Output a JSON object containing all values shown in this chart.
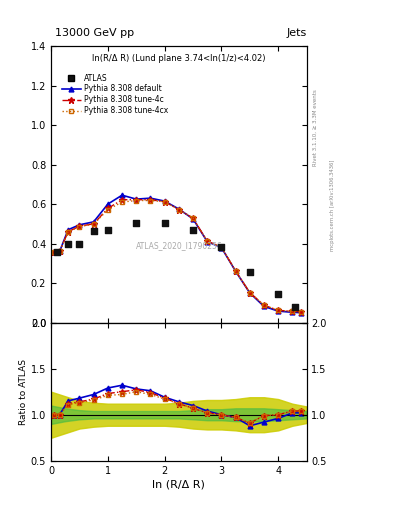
{
  "title_top": "13000 GeV pp",
  "title_right": "Jets",
  "annotation": "ln(R/Δ R) (Lund plane 3.74<ln(1/z)<4.02)",
  "watermark": "ATLAS_2020_I1790256",
  "right_label_top": "Rivet 3.1.10, ≥ 3.3M events",
  "right_label_bot": "mcplots.cern.ch [arXiv:1306.3436]",
  "xlabel": "ln (R/Δ R)",
  "xlim": [
    0,
    4.5
  ],
  "ylim_main": [
    0.0,
    1.4
  ],
  "ylim_ratio": [
    0.5,
    2.0
  ],
  "yticks_main": [
    0.0,
    0.2,
    0.4,
    0.6,
    0.8,
    1.0,
    1.2,
    1.4
  ],
  "yticks_ratio": [
    0.5,
    1.0,
    1.5,
    2.0
  ],
  "xticks": [
    0,
    1,
    2,
    3,
    4
  ],
  "atlas_x": [
    0.1,
    0.3,
    0.5,
    0.75,
    1.0,
    1.5,
    2.0,
    2.5,
    3.0,
    3.5,
    4.0,
    4.3
  ],
  "atlas_y": [
    0.355,
    0.4,
    0.4,
    0.465,
    0.47,
    0.505,
    0.505,
    0.47,
    0.385,
    0.255,
    0.145,
    0.08
  ],
  "pythia_x": [
    0.05,
    0.15,
    0.3,
    0.5,
    0.75,
    1.0,
    1.25,
    1.5,
    1.75,
    2.0,
    2.25,
    2.5,
    2.75,
    3.0,
    3.25,
    3.5,
    3.75,
    4.0,
    4.25,
    4.4
  ],
  "default_y": [
    0.355,
    0.36,
    0.47,
    0.495,
    0.51,
    0.6,
    0.645,
    0.625,
    0.63,
    0.615,
    0.575,
    0.525,
    0.41,
    0.38,
    0.26,
    0.15,
    0.082,
    0.058,
    0.052,
    0.05
  ],
  "tune4c_y": [
    0.355,
    0.36,
    0.46,
    0.488,
    0.5,
    0.578,
    0.622,
    0.622,
    0.622,
    0.612,
    0.572,
    0.528,
    0.413,
    0.382,
    0.262,
    0.152,
    0.088,
    0.062,
    0.057,
    0.055
  ],
  "tune4cx_y": [
    0.355,
    0.36,
    0.458,
    0.486,
    0.498,
    0.572,
    0.61,
    0.618,
    0.618,
    0.612,
    0.572,
    0.53,
    0.413,
    0.382,
    0.262,
    0.152,
    0.088,
    0.062,
    0.057,
    0.055
  ],
  "ratio_default_y": [
    1.0,
    1.0,
    1.15,
    1.18,
    1.22,
    1.29,
    1.32,
    1.28,
    1.26,
    1.19,
    1.14,
    1.1,
    1.04,
    1.0,
    0.97,
    0.88,
    0.92,
    0.96,
    1.02,
    1.02
  ],
  "ratio_4c_y": [
    1.0,
    1.0,
    1.12,
    1.14,
    1.17,
    1.23,
    1.25,
    1.27,
    1.24,
    1.18,
    1.12,
    1.07,
    1.02,
    1.0,
    0.97,
    0.91,
    0.99,
    1.0,
    1.04,
    1.04
  ],
  "ratio_4cx_y": [
    1.0,
    1.0,
    1.11,
    1.13,
    1.16,
    1.21,
    1.22,
    1.25,
    1.22,
    1.17,
    1.12,
    1.07,
    1.02,
    1.0,
    0.97,
    0.91,
    0.99,
    1.0,
    1.04,
    1.04
  ],
  "band_x": [
    0.0,
    0.25,
    0.5,
    0.75,
    1.0,
    1.25,
    1.5,
    1.75,
    2.0,
    2.25,
    2.5,
    2.75,
    3.0,
    3.25,
    3.5,
    3.75,
    4.0,
    4.25,
    4.5
  ],
  "green_low": [
    0.9,
    0.93,
    0.95,
    0.96,
    0.96,
    0.96,
    0.96,
    0.96,
    0.96,
    0.96,
    0.95,
    0.94,
    0.94,
    0.93,
    0.93,
    0.93,
    0.94,
    0.95,
    0.96
  ],
  "green_high": [
    1.1,
    1.07,
    1.05,
    1.04,
    1.04,
    1.04,
    1.04,
    1.04,
    1.04,
    1.04,
    1.05,
    1.06,
    1.06,
    1.07,
    1.07,
    1.07,
    1.06,
    1.05,
    1.04
  ],
  "yellow_low": [
    0.75,
    0.8,
    0.85,
    0.87,
    0.88,
    0.88,
    0.88,
    0.88,
    0.88,
    0.87,
    0.85,
    0.84,
    0.84,
    0.83,
    0.81,
    0.81,
    0.83,
    0.88,
    0.91
  ],
  "yellow_high": [
    1.25,
    1.2,
    1.15,
    1.13,
    1.12,
    1.12,
    1.12,
    1.12,
    1.12,
    1.13,
    1.15,
    1.16,
    1.16,
    1.17,
    1.19,
    1.19,
    1.17,
    1.12,
    1.09
  ],
  "color_default": "#0000cc",
  "color_4c": "#cc0000",
  "color_4cx": "#cc6600",
  "color_atlas": "#111111",
  "color_green": "#44bb44",
  "color_yellow": "#cccc00"
}
